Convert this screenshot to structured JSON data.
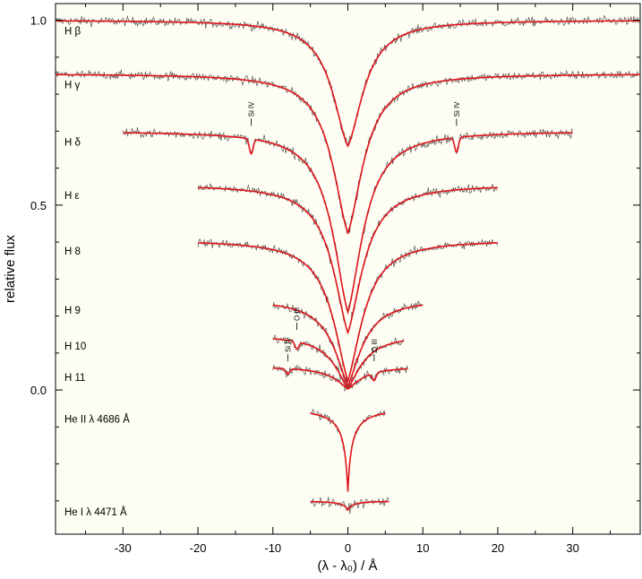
{
  "chart_data": {
    "type": "line",
    "xlabel": "(λ - λ₀) / Å",
    "ylabel": "relative flux",
    "xlim": [
      -39,
      39
    ],
    "ylim": [
      -0.39,
      1.045
    ],
    "x_ticks": [
      -30,
      -20,
      -10,
      0,
      10,
      20,
      30
    ],
    "y_ticks": [
      0.0,
      0.5,
      1.0
    ],
    "y_tick_labels": [
      "0.0",
      "0.5",
      "1.0"
    ],
    "grid": false,
    "legend": "none",
    "colors": {
      "model": "#e0141b",
      "observed": "#555555",
      "background": "#fdfdf3"
    },
    "series": [
      {
        "name": "H β",
        "xrange": [
          -39,
          39
        ],
        "continuum": 1.0,
        "depth": 0.34,
        "core_width": 0.7,
        "wing": 9.0,
        "ann": []
      },
      {
        "name": "H γ",
        "xrange": [
          -39,
          39
        ],
        "continuum": 0.855,
        "depth": 0.43,
        "core_width": 0.7,
        "wing": 8.5,
        "ann": []
      },
      {
        "name": "H δ",
        "xrange": [
          -30,
          30
        ],
        "continuum": 0.7,
        "depth": 0.49,
        "core_width": 0.7,
        "wing": 7.5,
        "ann": [
          {
            "x": -12.9,
            "label": "Si IV",
            "depth": 0.04
          },
          {
            "x": 14.5,
            "label": "Si IV",
            "depth": 0.04
          }
        ]
      },
      {
        "name": "H ε",
        "xrange": [
          -20,
          20
        ],
        "continuum": 0.555,
        "depth": 0.4,
        "core_width": 0.7,
        "wing": 7.0,
        "ann": []
      },
      {
        "name": "H 8",
        "xrange": [
          -20,
          20
        ],
        "continuum": 0.405,
        "depth": 0.38,
        "core_width": 0.7,
        "wing": 6.5,
        "ann": []
      },
      {
        "name": "H 9",
        "xrange": [
          -10,
          10
        ],
        "continuum": 0.245,
        "depth": 0.235,
        "core_width": 0.7,
        "wing": 5.0,
        "ann": []
      },
      {
        "name": "H 10",
        "xrange": [
          -10,
          7.5
        ],
        "continuum": 0.148,
        "depth": 0.145,
        "core_width": 0.7,
        "wing": 4.5,
        "ann": [
          {
            "x": -6.8,
            "label": "O III",
            "depth": 0.02
          }
        ]
      },
      {
        "name": "H 11",
        "xrange": [
          -10,
          8
        ],
        "continuum": 0.063,
        "depth": 0.06,
        "core_width": 0.7,
        "wing": 4.0,
        "ann": [
          {
            "x": -8.0,
            "label": "Si IV",
            "depth": 0.015
          },
          {
            "x": 3.5,
            "label": "O III",
            "depth": 0.02
          }
        ]
      },
      {
        "name": "He II λ 4686 Å",
        "xrange": [
          -5,
          5
        ],
        "continuum": -0.05,
        "depth": 0.225,
        "core_width": 0.5,
        "wing": 0.5,
        "ann": []
      },
      {
        "name": "He I λ 4471 Å",
        "xrange": [
          -5,
          5.5
        ],
        "continuum": -0.3,
        "depth": 0.025,
        "core_width": 0.6,
        "wing": 0.6,
        "ann": []
      }
    ]
  }
}
